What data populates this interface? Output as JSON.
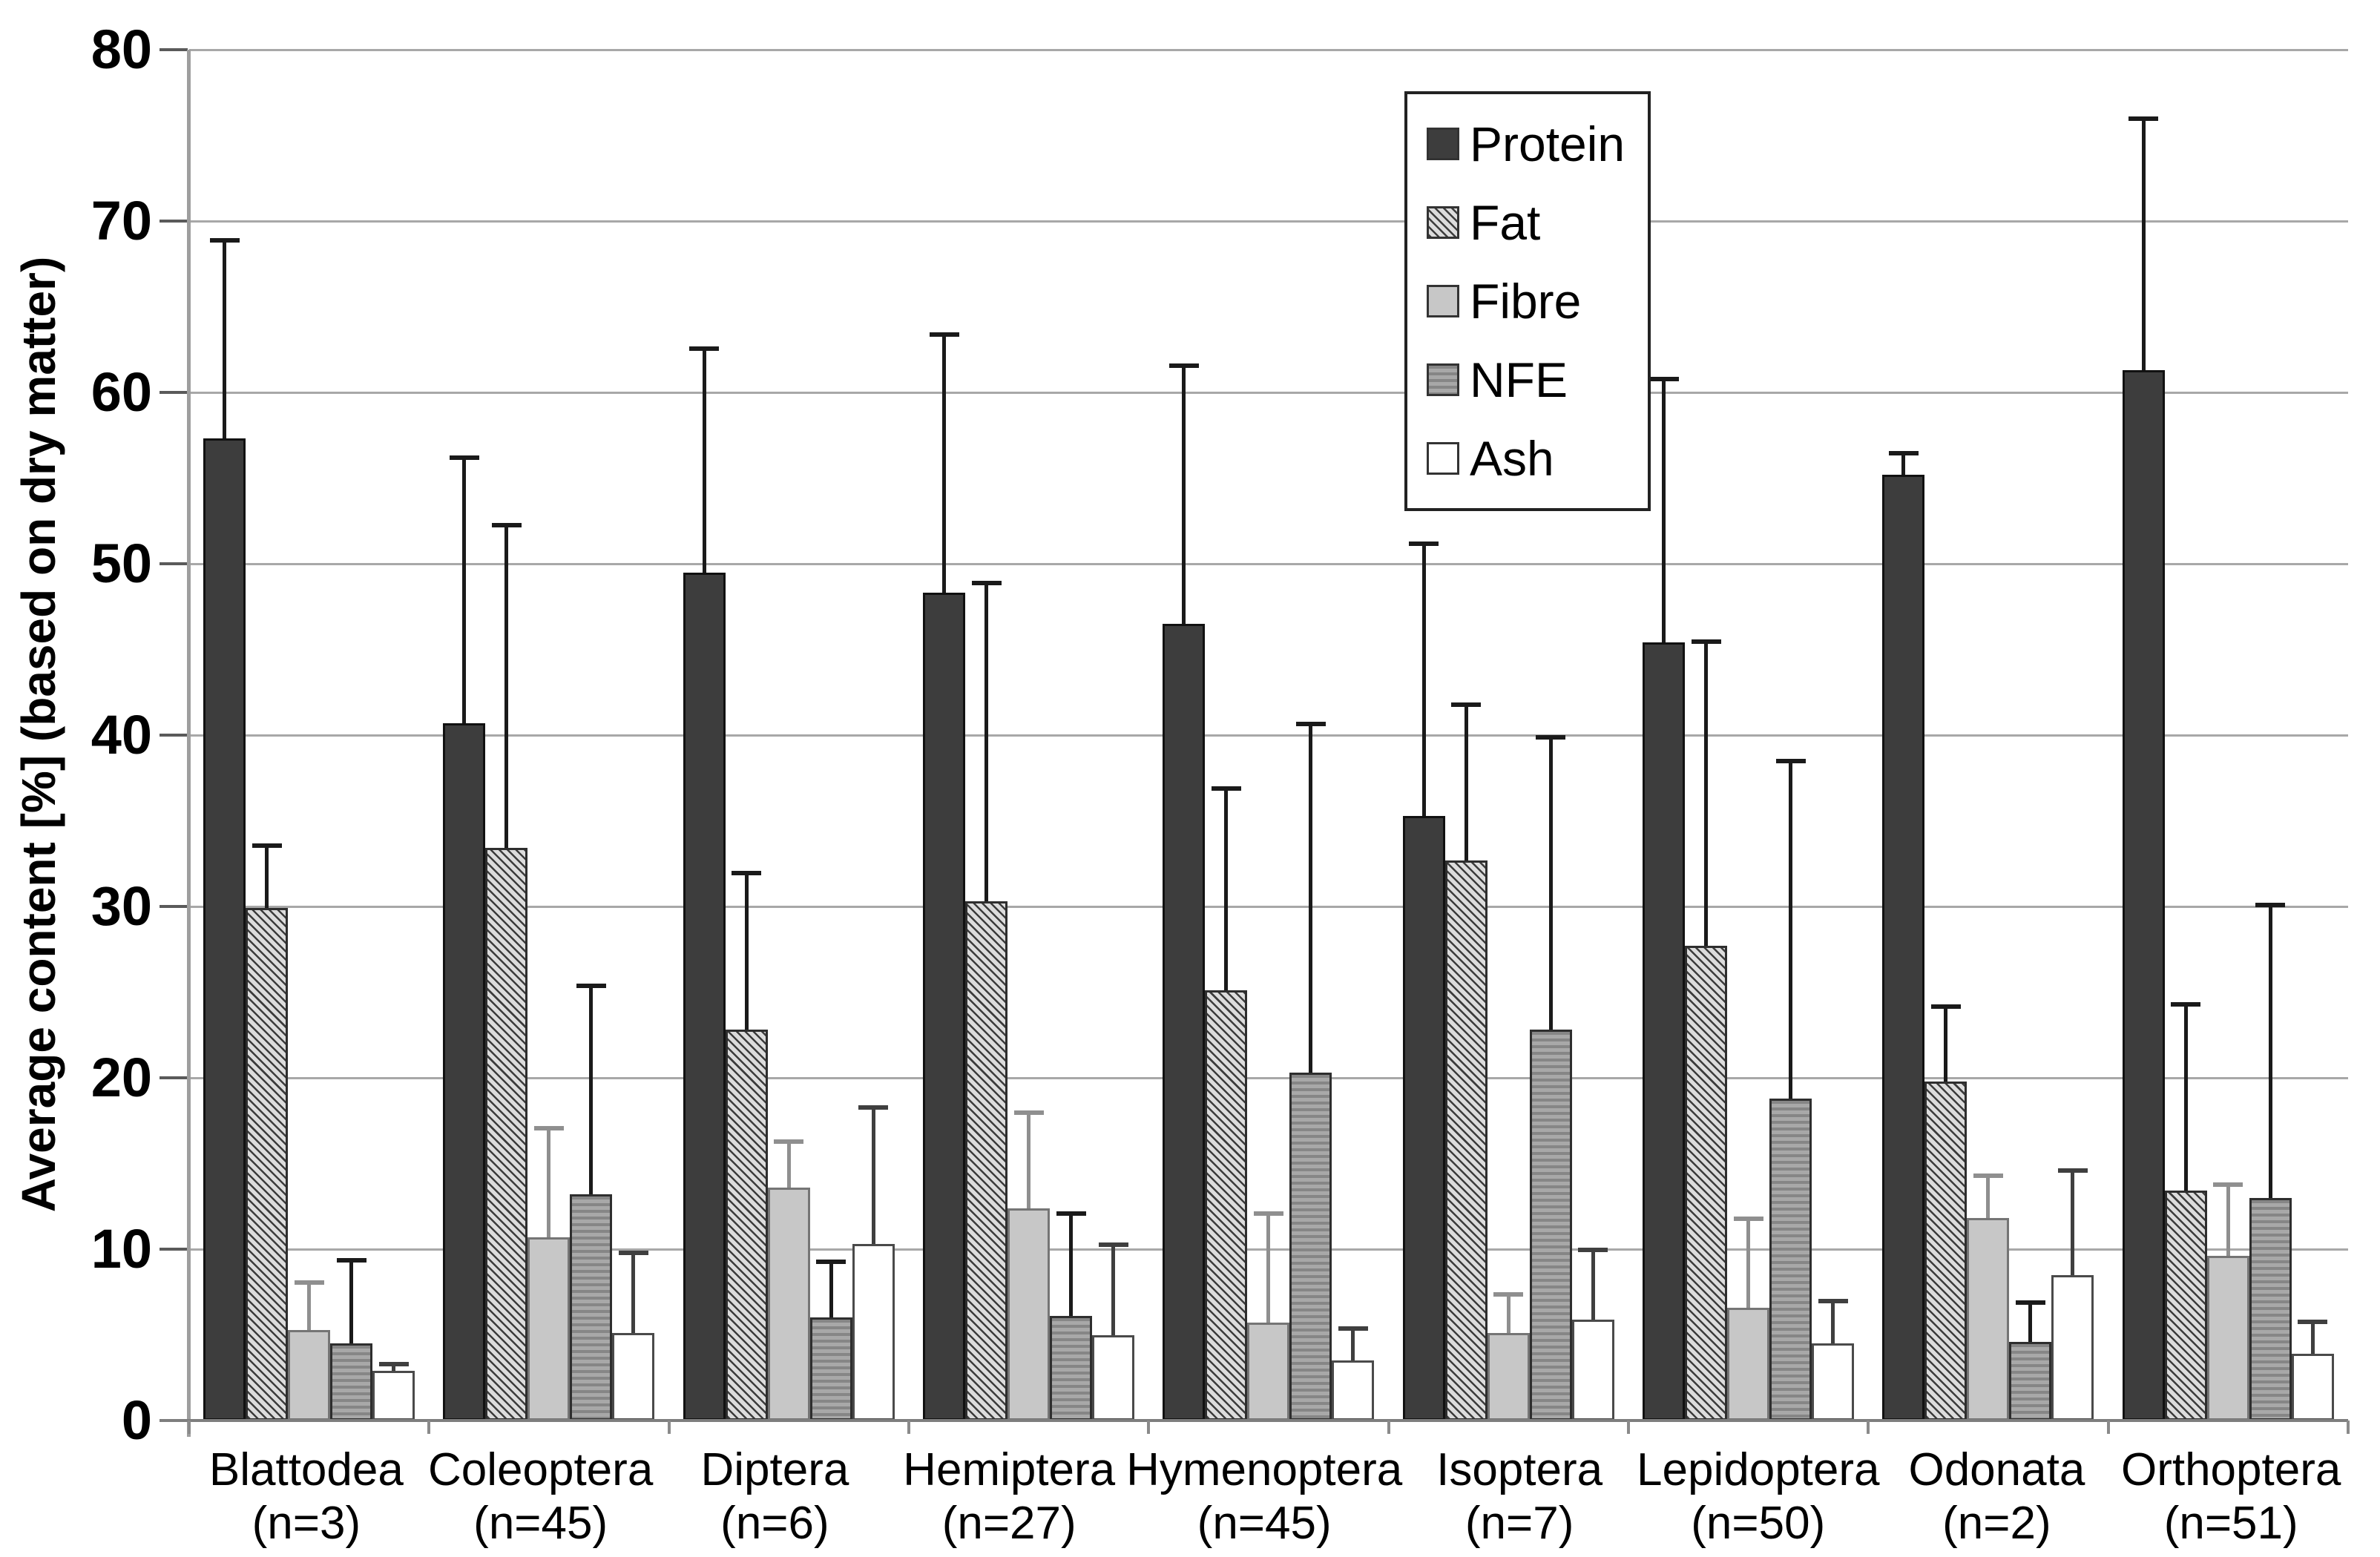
{
  "chart_data": {
    "type": "bar",
    "title": "",
    "ylabel": "Average content [%] (based on dry matter)",
    "xlabel": "",
    "ylim": [
      0,
      80
    ],
    "yticks": [
      0,
      10,
      20,
      30,
      40,
      50,
      60,
      70,
      80
    ],
    "grid": "horizontal-only",
    "gridline_color": "#a8a8a8",
    "legend_position": "top-center-inside-box",
    "error_bars": "upper-only-standard-deviation",
    "categories": [
      {
        "label": "Blattodea",
        "sub": "(n=3)"
      },
      {
        "label": "Coleoptera",
        "sub": "(n=45)"
      },
      {
        "label": "Diptera",
        "sub": "(n=6)"
      },
      {
        "label": "Hemiptera",
        "sub": "(n=27)"
      },
      {
        "label": "Hymenoptera",
        "sub": "(n=45)"
      },
      {
        "label": "Isoptera",
        "sub": "(n=7)"
      },
      {
        "label": "Lepidoptera",
        "sub": "(n=50)"
      },
      {
        "label": "Odonata",
        "sub": "(n=2)"
      },
      {
        "label": "Orthoptera",
        "sub": "(n=51)"
      }
    ],
    "series": [
      {
        "name": "Protein",
        "pattern": "solid-dark",
        "fill": "#3d3d3d",
        "error_color": "#1a1a1a",
        "values": [
          57.3,
          40.7,
          49.5,
          48.3,
          46.5,
          35.3,
          45.4,
          55.2,
          61.3
        ],
        "error_top": [
          69.0,
          56.3,
          62.7,
          63.5,
          61.7,
          51.3,
          60.9,
          56.6,
          76.1
        ]
      },
      {
        "name": "Fat",
        "pattern": "diagonal-hatch",
        "fill": "#dcdcdc",
        "stripe": "#3c3c3c",
        "error_color": "#1a1a1a",
        "values": [
          29.9,
          33.4,
          22.8,
          30.3,
          25.1,
          32.7,
          27.7,
          19.8,
          13.4
        ],
        "error_top": [
          33.7,
          52.4,
          32.1,
          49.0,
          37.0,
          41.9,
          45.6,
          24.3,
          24.4
        ]
      },
      {
        "name": "Fibre",
        "pattern": "solid-light",
        "fill": "#c7c7c7",
        "error_color": "#8f8f8f",
        "values": [
          5.3,
          10.7,
          13.6,
          12.4,
          5.7,
          5.1,
          6.6,
          11.8,
          9.6
        ],
        "error_top": [
          8.2,
          17.2,
          16.4,
          18.1,
          12.2,
          7.5,
          11.9,
          14.4,
          13.9
        ]
      },
      {
        "name": "NFE",
        "pattern": "horizontal-stripes",
        "fill": "#9b9b9b",
        "stripe": "#828282",
        "error_color": "#1a1a1a",
        "values": [
          4.5,
          13.2,
          6.0,
          6.1,
          20.3,
          22.8,
          18.8,
          4.6,
          13.0
        ],
        "error_top": [
          9.5,
          25.5,
          9.4,
          12.2,
          40.8,
          40.0,
          38.6,
          7.0,
          30.2
        ]
      },
      {
        "name": "Ash",
        "pattern": "white-outline",
        "fill": "#ffffff",
        "error_color": "#3f3f3f",
        "values": [
          2.9,
          5.1,
          10.3,
          5.0,
          3.5,
          5.9,
          4.5,
          8.5,
          3.9
        ],
        "error_top": [
          3.4,
          9.9,
          18.4,
          10.4,
          5.5,
          10.1,
          7.1,
          14.7,
          5.9
        ]
      }
    ]
  }
}
